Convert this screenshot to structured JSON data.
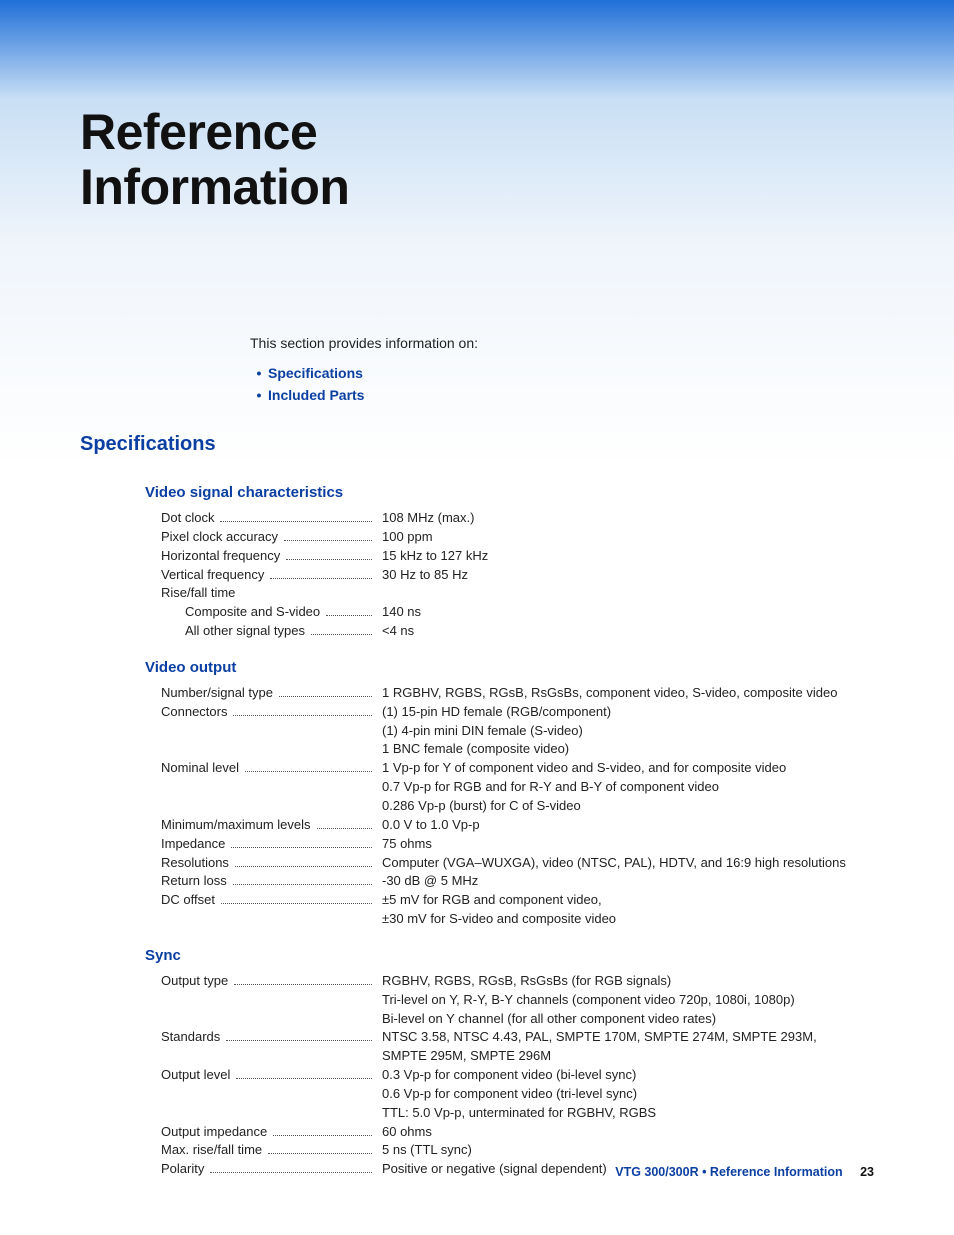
{
  "colors": {
    "link_blue": "#0b3fa2",
    "text": "#222222",
    "gradient_top": "#1f6fd8",
    "gradient_bottom": "#ffffff"
  },
  "title_line1": "Reference",
  "title_line2": "Information",
  "intro": "This section provides information on:",
  "toc": {
    "specifications": "Specifications",
    "included_parts": "Included Parts"
  },
  "section_heading": "Specifications",
  "subsections": {
    "video_signal": {
      "heading": "Video signal characteristics",
      "rows": {
        "dot_clock": {
          "label": "Dot clock",
          "value": "108 MHz (max.)"
        },
        "pixel_clock_accuracy": {
          "label": "Pixel clock accuracy",
          "value": "100 ppm"
        },
        "horizontal_frequency": {
          "label": "Horizontal frequency",
          "value": "15 kHz to 127 kHz"
        },
        "vertical_frequency": {
          "label": "Vertical frequency",
          "value": "30 Hz to 85 Hz"
        },
        "rise_fall_time": {
          "label": "Rise/fall time",
          "value": ""
        },
        "composite_svideo": {
          "label": "Composite and S-video",
          "value": "140 ns"
        },
        "all_other": {
          "label": "All other signal types",
          "value": "<4 ns"
        }
      }
    },
    "video_output": {
      "heading": "Video output",
      "rows": {
        "number_signal_type": {
          "label": "Number/signal type",
          "value": "1 RGBHV, RGBS, RGsB, RsGsBs, component video, S-video, composite video"
        },
        "connectors": {
          "label": "Connectors",
          "lines": [
            "(1) 15-pin HD female (RGB/component)",
            "(1) 4-pin mini DIN female (S-video)",
            "1 BNC female (composite video)"
          ]
        },
        "nominal_level": {
          "label": "Nominal level",
          "lines": [
            "1 Vp-p for Y of component video and S-video, and for composite video",
            "0.7 Vp-p for RGB and for R-Y and B-Y of component video",
            "0.286 Vp-p (burst) for C of S-video"
          ]
        },
        "min_max_levels": {
          "label": "Minimum/maximum levels",
          "value": "0.0 V to 1.0 Vp-p"
        },
        "impedance": {
          "label": "Impedance",
          "value": "75 ohms"
        },
        "resolutions": {
          "label": "Resolutions",
          "value": "Computer (VGA–WUXGA), video (NTSC, PAL), HDTV, and 16:9 high resolutions"
        },
        "return_loss": {
          "label": "Return loss",
          "value": "-30 dB @ 5 MHz"
        },
        "dc_offset": {
          "label": "DC offset",
          "lines": [
            "±5 mV for RGB and component video,",
            "±30 mV for S-video and composite video"
          ]
        }
      }
    },
    "sync": {
      "heading": "Sync",
      "rows": {
        "output_type": {
          "label": "Output type",
          "lines": [
            "RGBHV, RGBS, RGsB, RsGsBs (for RGB signals)",
            "Tri-level on Y, R-Y, B-Y channels (component video 720p, 1080i, 1080p)",
            "Bi-level on Y channel (for all other component video rates)"
          ]
        },
        "standards": {
          "label": "Standards",
          "lines": [
            "NTSC 3.58, NTSC 4.43, PAL, SMPTE 170M, SMPTE 274M, SMPTE 293M,",
            "SMPTE 295M, SMPTE 296M"
          ]
        },
        "output_level": {
          "label": "Output level",
          "lines": [
            "0.3 Vp-p for component video (bi-level sync)",
            "0.6 Vp-p for component video (tri-level sync)",
            "TTL: 5.0 Vp-p, unterminated for RGBHV, RGBS"
          ]
        },
        "output_impedance": {
          "label": "Output impedance",
          "value": "60 ohms"
        },
        "max_rise_fall": {
          "label": "Max. rise/fall time",
          "value": "5 ns (TTL sync)"
        },
        "polarity": {
          "label": "Polarity",
          "value": "Positive or negative (signal dependent)"
        }
      }
    }
  },
  "footer": {
    "doc": "VTG 300/300R • Reference Information",
    "page": "23"
  }
}
